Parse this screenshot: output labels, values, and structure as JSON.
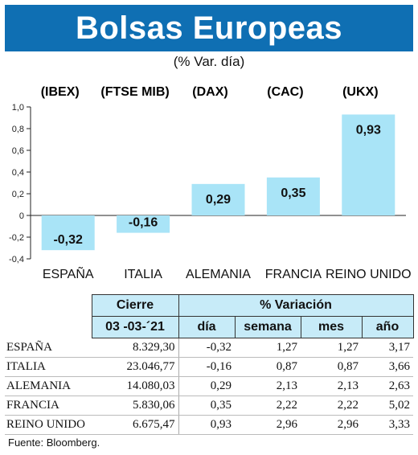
{
  "title": "Bolsas Europeas",
  "subtitle": "(% Var. día)",
  "chart_data": {
    "type": "bar",
    "index_labels": [
      "(IBEX)",
      "(FTSE MIB)",
      "(DAX)",
      "(CAC)",
      "(UKX)"
    ],
    "categories": [
      "ESPAÑA",
      "ITALIA",
      "ALEMANIA",
      "FRANCIA",
      "REINO UNIDO"
    ],
    "values": [
      -0.32,
      -0.16,
      0.29,
      0.35,
      0.93
    ],
    "value_labels": [
      "-0,32",
      "-0,16",
      "0,29",
      "0,35",
      "0,93"
    ],
    "ylim": [
      -0.4,
      1.0
    ],
    "yticks": [
      1.0,
      0.8,
      0.6,
      0.4,
      0.2,
      0,
      -0.2,
      -0.4
    ],
    "ytick_labels": [
      "1,0",
      "0,8",
      "0,6",
      "0,4",
      "0,2",
      "0",
      "-0,2",
      "-0,4"
    ],
    "bar_color": "#a9e4f7",
    "grid": false
  },
  "table": {
    "header1": [
      "Cierre",
      "% Variación"
    ],
    "header2": [
      "03 -03-´21",
      "día",
      "semana",
      "mes",
      "año"
    ],
    "rows": [
      [
        "ESPAÑA",
        "8.329,30",
        "-0,32",
        "1,27",
        "1,27",
        "3,17"
      ],
      [
        "ITALIA",
        "23.046,77",
        "-0,16",
        "0,87",
        "0,87",
        "3,66"
      ],
      [
        "ALEMANIA",
        "14.080,03",
        "0,29",
        "2,13",
        "2,13",
        "2,63"
      ],
      [
        "FRANCIA",
        "5.830,06",
        "0,35",
        "2,22",
        "2,22",
        "5,02"
      ],
      [
        "REINO UNIDO",
        "6.675,47",
        "0,93",
        "2,96",
        "2,96",
        "3,33"
      ]
    ],
    "header_bg": "#c7ebf8"
  },
  "source": "Fuente: Bloomberg.",
  "colors": {
    "banner": "#0f6fb3"
  }
}
